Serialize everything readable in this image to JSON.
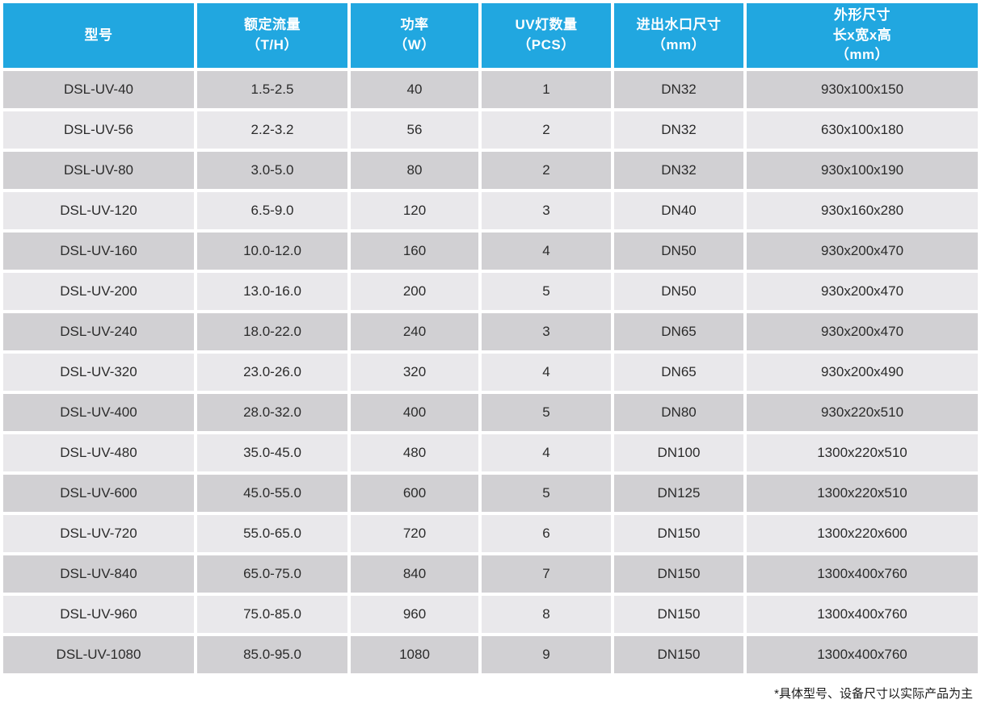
{
  "colors": {
    "header_bg": "#21a7e0",
    "header_text": "#ffffff",
    "row_dark": "#d1d0d3",
    "row_light": "#e9e8eb",
    "cell_text": "#2b2b2b",
    "page_background": "#ffffff"
  },
  "table": {
    "header_lines": [
      [
        "型号"
      ],
      [
        "额定流量",
        "（T/H）"
      ],
      [
        "功率",
        "（W）"
      ],
      [
        "UV灯数量",
        "（PCS）"
      ],
      [
        "进出水口尺寸",
        "（mm）"
      ],
      [
        "外形尺寸",
        "长x宽x高",
        "（mm）"
      ]
    ]
  },
  "footnote": "*具体型号、设备尺寸以实际产品为主",
  "chart_data": {
    "type": "table",
    "title": "",
    "columns": [
      "型号",
      "额定流量（T/H）",
      "功率（W）",
      "UV灯数量（PCS）",
      "进出水口尺寸（mm）",
      "外形尺寸 长x宽x高（mm）"
    ],
    "rows": [
      [
        "DSL-UV-40",
        "1.5-2.5",
        "40",
        "1",
        "DN32",
        "930x100x150"
      ],
      [
        "DSL-UV-56",
        "2.2-3.2",
        "56",
        "2",
        "DN32",
        "630x100x180"
      ],
      [
        "DSL-UV-80",
        "3.0-5.0",
        "80",
        "2",
        "DN32",
        "930x100x190"
      ],
      [
        "DSL-UV-120",
        "6.5-9.0",
        "120",
        "3",
        "DN40",
        "930x160x280"
      ],
      [
        "DSL-UV-160",
        "10.0-12.0",
        "160",
        "4",
        "DN50",
        "930x200x470"
      ],
      [
        "DSL-UV-200",
        "13.0-16.0",
        "200",
        "5",
        "DN50",
        "930x200x470"
      ],
      [
        "DSL-UV-240",
        "18.0-22.0",
        "240",
        "3",
        "DN65",
        "930x200x470"
      ],
      [
        "DSL-UV-320",
        "23.0-26.0",
        "320",
        "4",
        "DN65",
        "930x200x490"
      ],
      [
        "DSL-UV-400",
        "28.0-32.0",
        "400",
        "5",
        "DN80",
        "930x220x510"
      ],
      [
        "DSL-UV-480",
        "35.0-45.0",
        "480",
        "4",
        "DN100",
        "1300x220x510"
      ],
      [
        "DSL-UV-600",
        "45.0-55.0",
        "600",
        "5",
        "DN125",
        "1300x220x510"
      ],
      [
        "DSL-UV-720",
        "55.0-65.0",
        "720",
        "6",
        "DN150",
        "1300x220x600"
      ],
      [
        "DSL-UV-840",
        "65.0-75.0",
        "840",
        "7",
        "DN150",
        "1300x400x760"
      ],
      [
        "DSL-UV-960",
        "75.0-85.0",
        "960",
        "8",
        "DN150",
        "1300x400x760"
      ],
      [
        "DSL-UV-1080",
        "85.0-95.0",
        "1080",
        "9",
        "DN150",
        "1300x400x760"
      ]
    ]
  }
}
